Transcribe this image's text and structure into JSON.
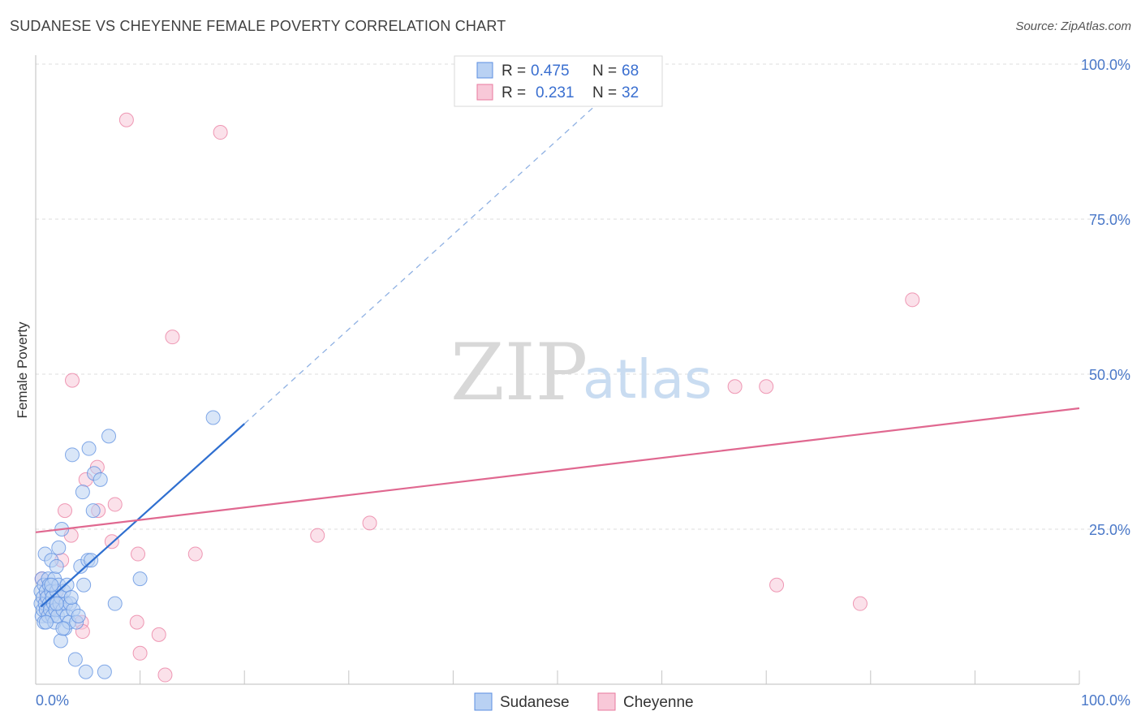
{
  "title": "SUDANESE VS CHEYENNE FEMALE POVERTY CORRELATION CHART",
  "source": "Source: ZipAtlas.com",
  "watermark": {
    "zip": "ZIP",
    "atlas": "atlas"
  },
  "colors": {
    "sudanese": "#5b8ee0",
    "sudanese_fill": "#b9d1f3",
    "cheyenne": "#e9799e",
    "cheyenne_fill": "#f8c8d8",
    "tick_text": "#4a78c8",
    "grid": "#dcdcdc"
  },
  "legend": {
    "rows": [
      {
        "r_label": "R =",
        "r_value": "0.475",
        "n_label": "N =",
        "n_value": "68"
      },
      {
        "r_label": "R =",
        "r_value": "0.231",
        "n_label": "N =",
        "n_value": "32"
      }
    ]
  },
  "chart_data": {
    "type": "scatter",
    "title": "SUDANESE VS CHEYENNE FEMALE POVERTY CORRELATION CHART",
    "xlabel": "",
    "ylabel": "Female Poverty",
    "xlim": [
      0,
      100
    ],
    "ylim": [
      0,
      100
    ],
    "x_tick_labels": [
      "0.0%",
      "100.0%"
    ],
    "y_tick_labels": [
      "100.0%",
      "75.0%",
      "50.0%",
      "25.0%"
    ],
    "y_tick_values": [
      100,
      75,
      50,
      25
    ],
    "legend_position": "top-center",
    "series": [
      {
        "name": "Sudanese",
        "r": 0.475,
        "n": 68,
        "trend": {
          "x0": 0.5,
          "y0": 12.5,
          "x1": 20,
          "y1": 42,
          "dash_to_x": 58,
          "dash_to_y": 100
        },
        "points": [
          [
            0.5,
            13
          ],
          [
            0.5,
            15
          ],
          [
            0.6,
            11
          ],
          [
            0.6,
            17
          ],
          [
            0.7,
            12
          ],
          [
            0.7,
            14
          ],
          [
            0.8,
            16
          ],
          [
            0.8,
            10
          ],
          [
            0.9,
            13
          ],
          [
            0.9,
            21
          ],
          [
            1.0,
            15
          ],
          [
            1.0,
            12
          ],
          [
            1.1,
            14
          ],
          [
            1.2,
            11
          ],
          [
            1.2,
            17
          ],
          [
            1.3,
            13
          ],
          [
            1.3,
            16
          ],
          [
            1.4,
            12
          ],
          [
            1.5,
            15
          ],
          [
            1.5,
            20
          ],
          [
            1.6,
            11
          ],
          [
            1.6,
            14
          ],
          [
            1.7,
            13
          ],
          [
            1.8,
            10
          ],
          [
            1.8,
            17
          ],
          [
            1.9,
            12
          ],
          [
            2.0,
            15
          ],
          [
            2.0,
            19
          ],
          [
            2.1,
            11
          ],
          [
            2.2,
            16
          ],
          [
            2.2,
            22
          ],
          [
            2.3,
            13
          ],
          [
            2.4,
            7
          ],
          [
            2.4,
            14
          ],
          [
            2.5,
            25
          ],
          [
            2.6,
            12
          ],
          [
            2.7,
            15
          ],
          [
            2.8,
            9
          ],
          [
            2.9,
            13
          ],
          [
            3.0,
            11
          ],
          [
            3.0,
            16
          ],
          [
            3.2,
            10
          ],
          [
            3.3,
            13
          ],
          [
            3.5,
            37
          ],
          [
            3.6,
            12
          ],
          [
            3.8,
            4
          ],
          [
            3.9,
            10
          ],
          [
            4.1,
            11
          ],
          [
            4.3,
            19
          ],
          [
            4.5,
            31
          ],
          [
            4.6,
            16
          ],
          [
            4.8,
            2
          ],
          [
            5.0,
            20
          ],
          [
            5.1,
            38
          ],
          [
            5.3,
            20
          ],
          [
            5.6,
            34
          ],
          [
            6.2,
            33
          ],
          [
            6.6,
            2
          ],
          [
            7.0,
            40
          ],
          [
            7.6,
            13
          ],
          [
            10.0,
            17
          ],
          [
            17.0,
            43
          ],
          [
            1.5,
            16
          ],
          [
            2.0,
            13
          ],
          [
            1.0,
            10
          ],
          [
            3.4,
            14
          ],
          [
            2.6,
            9
          ],
          [
            5.5,
            28
          ]
        ]
      },
      {
        "name": "Cheyenne",
        "r": 0.231,
        "n": 32,
        "trend": {
          "x0": 0,
          "y0": 24.5,
          "x1": 100,
          "y1": 44.5
        },
        "points": [
          [
            8.7,
            91
          ],
          [
            17.7,
            89
          ],
          [
            13.1,
            56
          ],
          [
            3.5,
            49
          ],
          [
            4.8,
            33
          ],
          [
            3.4,
            24
          ],
          [
            2.5,
            20
          ],
          [
            5.9,
            35
          ],
          [
            6.0,
            28
          ],
          [
            7.3,
            23
          ],
          [
            7.6,
            29
          ],
          [
            9.8,
            21
          ],
          [
            15.3,
            21
          ],
          [
            9.7,
            10
          ],
          [
            10.0,
            5
          ],
          [
            11.8,
            8
          ],
          [
            12.4,
            1.5
          ],
          [
            4.4,
            10
          ],
          [
            4.5,
            8.5
          ],
          [
            2.0,
            15
          ],
          [
            1.2,
            12
          ],
          [
            0.6,
            17
          ],
          [
            2.8,
            28
          ],
          [
            1.5,
            13
          ],
          [
            27.0,
            24
          ],
          [
            32.0,
            26
          ],
          [
            67.0,
            48
          ],
          [
            70.0,
            48
          ],
          [
            84.0,
            62
          ],
          [
            71.0,
            16
          ],
          [
            79.0,
            13
          ],
          [
            1.0,
            14
          ]
        ]
      }
    ]
  }
}
